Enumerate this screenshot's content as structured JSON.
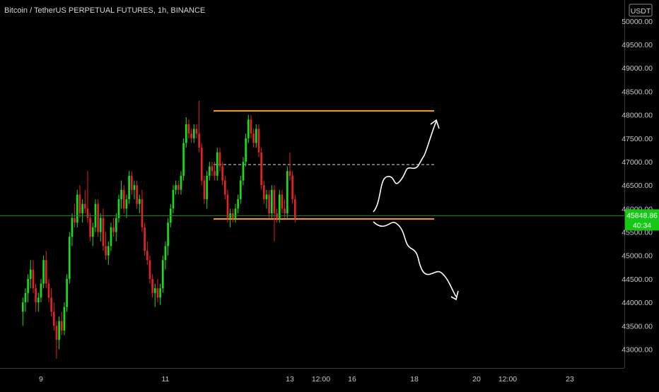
{
  "chart_data": {
    "type": "candlestick",
    "title": "Bitcoin / TetherUS PERPETUAL FUTURES, 1h, BINANCE",
    "currency_label": "USDT",
    "y_ticks": [
      43000,
      43500,
      44000,
      44500,
      45000,
      45500,
      46000,
      46500,
      47000,
      47500,
      48000,
      48500,
      49000,
      49500,
      50000
    ],
    "y_tick_labels": [
      "43000.00",
      "43500.00",
      "44000.00",
      "44500.00",
      "45000.00",
      "45500.00",
      "46000.00",
      "46500.00",
      "47000.00",
      "47500.00",
      "48000.00",
      "48500.00",
      "49000.00",
      "49500.00",
      "50000.00"
    ],
    "ylim": [
      42600,
      50450
    ],
    "x_ticks": [
      {
        "label": "9",
        "t": 7
      },
      {
        "label": "11",
        "t": 55
      },
      {
        "label": "13",
        "t": 103
      },
      {
        "label": "12:00",
        "t": 115
      },
      {
        "label": "16",
        "t": 127
      },
      {
        "label": "18",
        "t": 151
      },
      {
        "label": "20",
        "t": 175
      },
      {
        "label": "12:00",
        "t": 187
      },
      {
        "label": "23",
        "t": 211
      }
    ],
    "xlim": [
      -8.8,
      232
    ],
    "last_price": 45848.86,
    "last_price_label": "45848.86",
    "countdown": "40:34",
    "colors": {
      "up": "#14e114",
      "down": "#e62222",
      "background": "#000000",
      "box": "#ff9800",
      "price_line": "#1c8c1c",
      "text": "#c8c8c8"
    },
    "candles": [
      [
        43800,
        44100,
        43500,
        44000
      ],
      [
        44000,
        44300,
        43800,
        44200
      ],
      [
        44200,
        44600,
        44000,
        44500
      ],
      [
        44500,
        44900,
        44300,
        44700
      ],
      [
        44700,
        44900,
        44200,
        44300
      ],
      [
        44300,
        44400,
        43800,
        44000
      ],
      [
        44000,
        44200,
        43800,
        44100
      ],
      [
        44100,
        44500,
        44000,
        44400
      ],
      [
        44400,
        45000,
        44300,
        44900
      ],
      [
        44900,
        45100,
        44300,
        44400
      ],
      [
        44400,
        44500,
        44000,
        44100
      ],
      [
        44100,
        44300,
        43700,
        43800
      ],
      [
        43800,
        44000,
        43400,
        43500
      ],
      [
        43500,
        43600,
        42800,
        43200
      ],
      [
        43200,
        43700,
        43000,
        43600
      ],
      [
        43600,
        43800,
        43300,
        43400
      ],
      [
        43400,
        44000,
        43300,
        43900
      ],
      [
        43900,
        44600,
        43800,
        44500
      ],
      [
        44500,
        45500,
        44400,
        45400
      ],
      [
        45400,
        45900,
        45200,
        45800
      ],
      [
        45800,
        46100,
        45600,
        45700
      ],
      [
        45700,
        46400,
        45600,
        46300
      ],
      [
        46300,
        46500,
        45800,
        45900
      ],
      [
        45900,
        46200,
        45700,
        46100
      ],
      [
        46100,
        46400,
        45900,
        46000
      ],
      [
        46000,
        46800,
        45700,
        45800
      ],
      [
        45800,
        45900,
        45300,
        45400
      ],
      [
        45400,
        45700,
        45200,
        45600
      ],
      [
        45600,
        46200,
        45500,
        46100
      ],
      [
        46100,
        46200,
        45400,
        45500
      ],
      [
        45500,
        45900,
        45300,
        45800
      ],
      [
        45800,
        46000,
        45100,
        45200
      ],
      [
        45200,
        45500,
        44900,
        45000
      ],
      [
        45000,
        45300,
        44800,
        45200
      ],
      [
        45200,
        45700,
        45100,
        45600
      ],
      [
        45600,
        45800,
        45400,
        45500
      ],
      [
        45500,
        45900,
        45300,
        45800
      ],
      [
        45800,
        46300,
        45700,
        46200
      ],
      [
        46200,
        46600,
        46000,
        46400
      ],
      [
        46400,
        46500,
        45900,
        46000
      ],
      [
        46000,
        46300,
        45800,
        46200
      ],
      [
        46200,
        46800,
        46100,
        46700
      ],
      [
        46700,
        46800,
        46300,
        46400
      ],
      [
        46400,
        46600,
        46200,
        46500
      ],
      [
        46500,
        46600,
        46000,
        46100
      ],
      [
        46100,
        46300,
        45900,
        46200
      ],
      [
        46200,
        46400,
        45500,
        45600
      ],
      [
        45600,
        45700,
        45000,
        45100
      ],
      [
        45100,
        45300,
        44800,
        44900
      ],
      [
        44900,
        45000,
        44400,
        44500
      ],
      [
        44500,
        44600,
        44100,
        44200
      ],
      [
        44200,
        44400,
        43900,
        44300
      ],
      [
        44300,
        44500,
        44000,
        44100
      ],
      [
        44100,
        44400,
        43950,
        44300
      ],
      [
        44300,
        45000,
        44200,
        44900
      ],
      [
        44900,
        45300,
        44700,
        45200
      ],
      [
        45200,
        45800,
        45000,
        45700
      ],
      [
        45700,
        46100,
        45600,
        46000
      ],
      [
        46000,
        46500,
        45900,
        46400
      ],
      [
        46400,
        46600,
        46300,
        46500
      ],
      [
        46500,
        46600,
        46300,
        46400
      ],
      [
        46400,
        46800,
        46300,
        46700
      ],
      [
        46700,
        47500,
        46600,
        47400
      ],
      [
        47400,
        47950,
        47300,
        47800
      ],
      [
        47800,
        47900,
        47500,
        47600
      ],
      [
        47600,
        47700,
        47400,
        47500
      ],
      [
        47500,
        47800,
        47400,
        47700
      ],
      [
        47700,
        47800,
        47500,
        47600
      ],
      [
        47600,
        48300,
        47200,
        47300
      ],
      [
        47300,
        47400,
        46500,
        46600
      ],
      [
        46600,
        46700,
        46100,
        46200
      ],
      [
        46200,
        46800,
        46000,
        46700
      ],
      [
        46700,
        47000,
        46600,
        46900
      ],
      [
        46900,
        47000,
        46700,
        46800
      ],
      [
        46800,
        47000,
        46600,
        46700
      ],
      [
        46700,
        47300,
        46600,
        47200
      ],
      [
        47200,
        47300,
        46800,
        46900
      ],
      [
        46900,
        47000,
        46500,
        46600
      ],
      [
        46600,
        46700,
        46200,
        46300
      ],
      [
        46300,
        46400,
        45700,
        45800
      ],
      [
        45800,
        46000,
        45600,
        45900
      ],
      [
        45900,
        46000,
        45700,
        45800
      ],
      [
        45800,
        46100,
        45700,
        46000
      ],
      [
        46000,
        46300,
        45900,
        46200
      ],
      [
        46200,
        46700,
        46100,
        46600
      ],
      [
        46600,
        47100,
        46500,
        47000
      ],
      [
        47000,
        47600,
        46900,
        47500
      ],
      [
        47500,
        48000,
        47400,
        47900
      ],
      [
        47900,
        48000,
        47500,
        47600
      ],
      [
        47600,
        47700,
        47300,
        47400
      ],
      [
        47400,
        47800,
        47300,
        47700
      ],
      [
        47700,
        47800,
        47100,
        47200
      ],
      [
        47200,
        47300,
        46400,
        46500
      ],
      [
        46500,
        46600,
        46100,
        46200
      ],
      [
        46200,
        46400,
        46000,
        46300
      ],
      [
        46300,
        46400,
        45800,
        45900
      ],
      [
        45900,
        46500,
        45800,
        46400
      ],
      [
        46400,
        46500,
        45300,
        45900
      ],
      [
        45900,
        46000,
        45700,
        45800
      ],
      [
        45800,
        46400,
        45700,
        46300
      ],
      [
        46300,
        46400,
        45900,
        46000
      ],
      [
        46000,
        46200,
        45800,
        45900
      ],
      [
        45900,
        46900,
        45800,
        46800
      ],
      [
        46800,
        47200,
        46600,
        46700
      ],
      [
        46700,
        46800,
        46100,
        46200
      ],
      [
        46200,
        46300,
        45700,
        45800
      ]
    ]
  }
}
